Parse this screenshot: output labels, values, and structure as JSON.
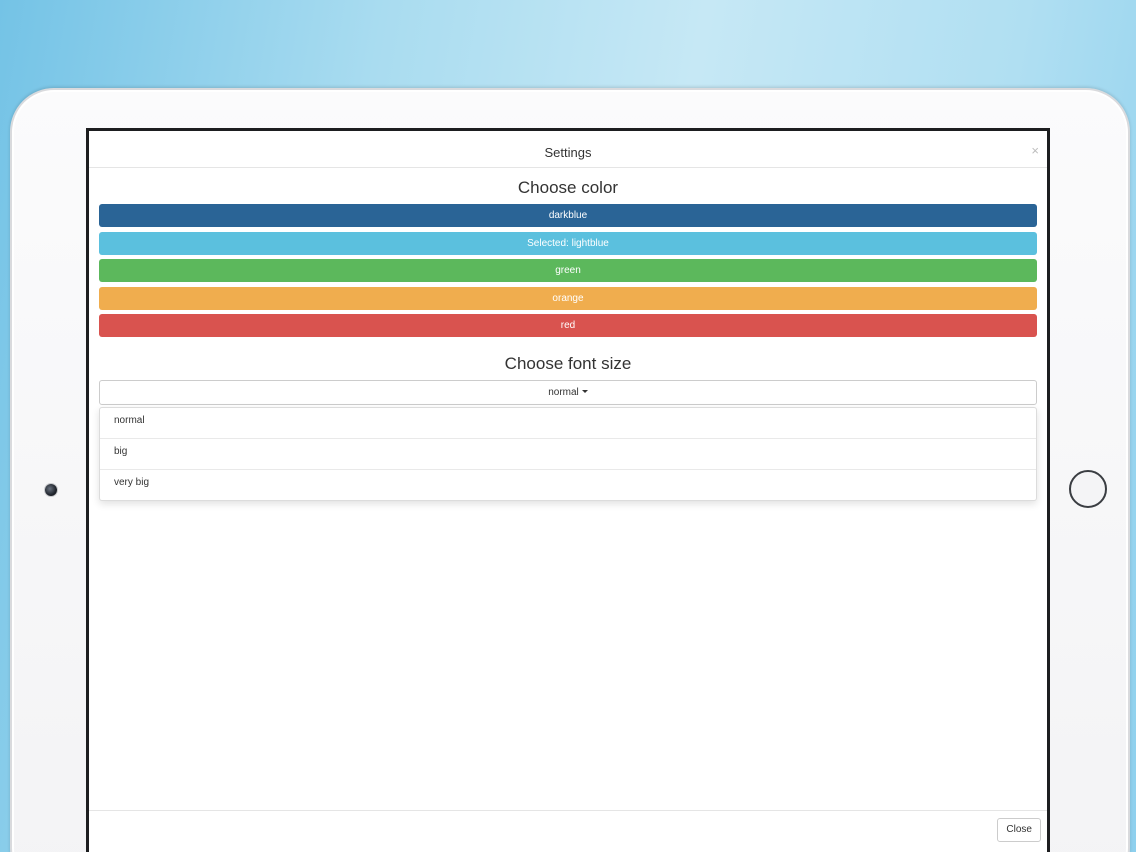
{
  "modal": {
    "title": "Settings",
    "close_symbol": "×",
    "footer_close_label": "Close"
  },
  "color_section": {
    "heading": "Choose color",
    "options": [
      {
        "label": "darkblue",
        "color": "#2a6496"
      },
      {
        "label": "Selected: lightblue",
        "color": "#5bc0de"
      },
      {
        "label": "green",
        "color": "#5cb85c"
      },
      {
        "label": "orange",
        "color": "#f0ad4e"
      },
      {
        "label": "red",
        "color": "#d9534f"
      }
    ]
  },
  "font_section": {
    "heading": "Choose font size",
    "selected": "normal",
    "options": [
      "normal",
      "big",
      "very big"
    ]
  },
  "icons": {
    "close": "close-icon",
    "caret": "caret-down-icon"
  }
}
